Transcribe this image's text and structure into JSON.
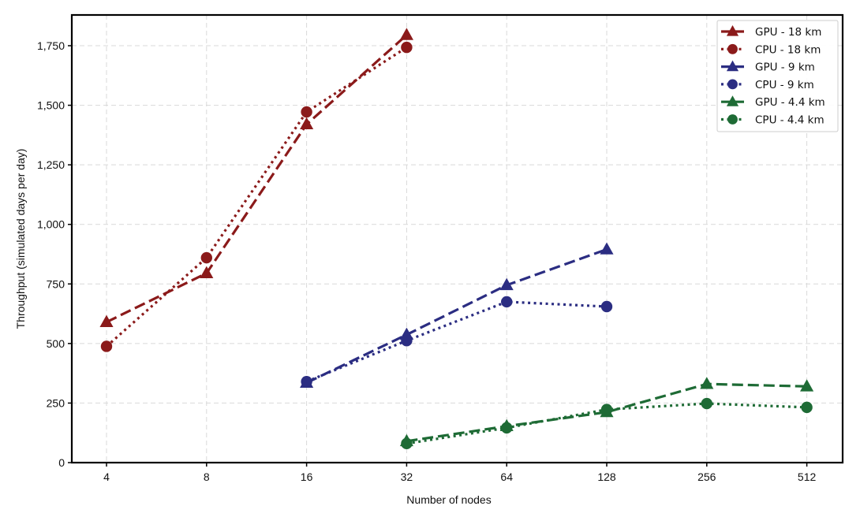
{
  "chart_data": {
    "type": "line",
    "title": "",
    "xlabel": "Number of nodes",
    "ylabel": "Throughput (simulated days per day)",
    "x_scale": "log2",
    "categories": [
      "4",
      "8",
      "16",
      "32",
      "64",
      "128",
      "256",
      "512"
    ],
    "x": [
      4,
      8,
      16,
      32,
      64,
      128,
      256,
      512
    ],
    "ylim": [
      0,
      1880
    ],
    "yticks": [
      0,
      250,
      500,
      750,
      1000,
      1250,
      1500,
      1750
    ],
    "ytick_labels": [
      "0",
      "250",
      "500",
      "750",
      "1,000",
      "1,250",
      "1,500",
      "1,750"
    ],
    "grid": true,
    "legend_position": "upper right",
    "series": [
      {
        "name": "GPU - 18 km",
        "color": "#8b1a1a",
        "marker": "triangle",
        "linestyle": "dashed",
        "x": [
          4,
          8,
          16,
          32
        ],
        "values": [
          590,
          795,
          1420,
          1795
        ]
      },
      {
        "name": "CPU - 18 km",
        "color": "#8b1a1a",
        "marker": "circle",
        "linestyle": "dotted",
        "x": [
          4,
          8,
          16,
          32
        ],
        "values": [
          488,
          860,
          1472,
          1743
        ]
      },
      {
        "name": "GPU - 9 km",
        "color": "#2b2d82",
        "marker": "triangle",
        "linestyle": "dashed",
        "x": [
          16,
          32,
          64,
          128
        ],
        "values": [
          335,
          537,
          745,
          895
        ]
      },
      {
        "name": "CPU - 9 km",
        "color": "#2b2d82",
        "marker": "circle",
        "linestyle": "dotted",
        "x": [
          16,
          32,
          64,
          128
        ],
        "values": [
          340,
          512,
          675,
          655
        ]
      },
      {
        "name": "GPU - 4.4 km",
        "color": "#1e6b35",
        "marker": "triangle",
        "linestyle": "dashed",
        "x": [
          32,
          64,
          128,
          256,
          512
        ],
        "values": [
          90,
          153,
          212,
          330,
          320
        ]
      },
      {
        "name": "CPU - 4.4 km",
        "color": "#1e6b35",
        "marker": "circle",
        "linestyle": "dotted",
        "x": [
          32,
          64,
          128,
          256,
          512
        ],
        "values": [
          80,
          146,
          223,
          248,
          232
        ]
      }
    ]
  }
}
